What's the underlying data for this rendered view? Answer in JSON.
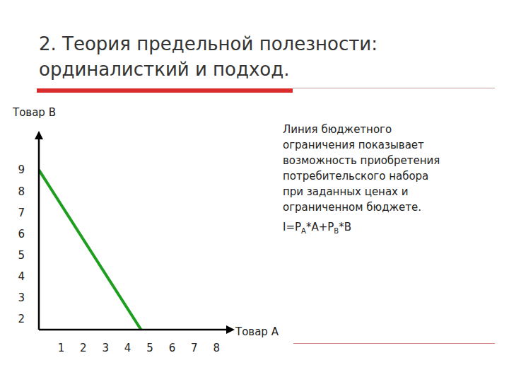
{
  "chart_data": {
    "type": "line",
    "title": "2. Теория предельной полезности: ординалисткий и подход.",
    "x_label": "Товар А",
    "y_label": "Товар В",
    "x": [
      0,
      4.6
    ],
    "values": [
      9,
      1.5
    ],
    "color": "#1e9e1e",
    "xlim": [
      0,
      8.5
    ],
    "xticks": [
      1,
      2,
      3,
      4,
      5,
      6,
      7,
      8
    ],
    "ylim": [
      1.5,
      10.5
    ],
    "yticks": [
      2,
      3,
      4,
      5,
      6,
      7,
      8,
      9
    ],
    "grid": false,
    "annotations": [
      "Линия бюджетного ограничения показывает возможность приобретения потребительского набора при заданных ценах и ограниченном бюджете."
    ],
    "formula_parts": [
      "I=P",
      "A",
      "*A+P",
      "B",
      "*B"
    ]
  }
}
